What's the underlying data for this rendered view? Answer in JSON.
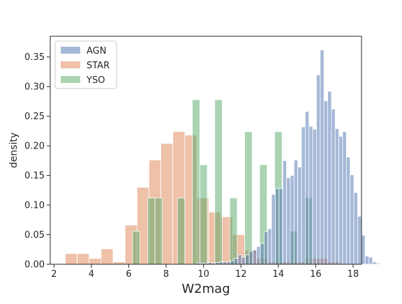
{
  "chart_data": {
    "type": "bar",
    "title": "",
    "xlabel": "W2mag",
    "ylabel": "density",
    "xlim": [
      1.8,
      18.45
    ],
    "ylim": [
      0,
      0.385
    ],
    "xticks": [
      2,
      4,
      6,
      8,
      10,
      12,
      14,
      16,
      18
    ],
    "yticks": [
      0.0,
      0.05,
      0.1,
      0.15,
      0.2,
      0.25,
      0.3,
      0.35
    ],
    "ytick_labels": [
      "0.00",
      "0.05",
      "0.10",
      "0.15",
      "0.20",
      "0.25",
      "0.30",
      "0.35"
    ],
    "grid": false,
    "legend_position": "top-left",
    "series": [
      {
        "name": "STAR",
        "color": "#dd8452",
        "bin_start": 2.6,
        "bin_width": 0.64,
        "values": [
          0.018,
          0.018,
          0.01,
          0.026,
          0.004,
          0.066,
          0.13,
          0.176,
          0.204,
          0.224,
          0.218,
          0.112,
          0.088,
          0.08,
          0.05,
          0.024,
          0.01,
          0.004,
          0.004,
          0.004,
          0.01,
          0.01,
          0.004
        ]
      },
      {
        "name": "YSO",
        "color": "#55a868",
        "bin_start": 6.2,
        "bin_width": 0.4,
        "values": [
          0.056,
          0.0,
          0.112,
          0.112,
          0.0,
          0.0,
          0.112,
          0.0,
          0.278,
          0.168,
          0.0,
          0.278,
          0.0,
          0.112,
          0.0,
          0.224,
          0.0,
          0.168,
          0.0,
          0.224,
          0.0,
          0.056,
          0.0,
          0.112
        ]
      },
      {
        "name": "AGN",
        "color": "#4c72b0",
        "bin_start": 9.64,
        "bin_width": 0.2,
        "values": [
          0.002,
          0.002,
          0.002,
          0.003,
          0.002,
          0.003,
          0.004,
          0.004,
          0.004,
          0.006,
          0.01,
          0.016,
          0.012,
          0.016,
          0.022,
          0.024,
          0.03,
          0.035,
          0.055,
          0.06,
          0.118,
          0.128,
          0.128,
          0.175,
          0.146,
          0.15,
          0.176,
          0.164,
          0.232,
          0.258,
          0.233,
          0.228,
          0.32,
          0.362,
          0.276,
          0.292,
          0.262,
          0.229,
          0.216,
          0.224,
          0.181,
          0.151,
          0.121,
          0.081,
          0.049,
          0.014,
          0.012,
          0.004,
          0.002
        ]
      }
    ],
    "legend": [
      "AGN",
      "STAR",
      "YSO"
    ]
  }
}
